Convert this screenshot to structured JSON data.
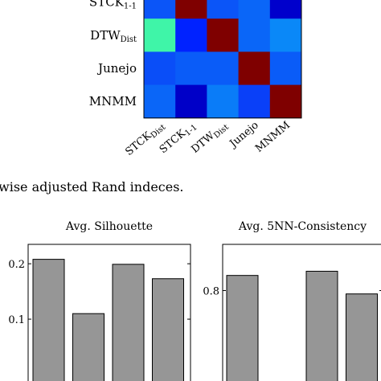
{
  "caption_fragment": "wise adjusted Rand indeces.",
  "chart_data": [
    {
      "type": "heatmap",
      "rows": [
        {
          "main": "STCK",
          "sub": "1-1"
        },
        {
          "main": "DTW",
          "sub": "Dist"
        },
        {
          "main": "Junejo",
          "sub": ""
        },
        {
          "main": "MNMM",
          "sub": ""
        }
      ],
      "columns": [
        {
          "main": "STCK",
          "sub": "Dist"
        },
        {
          "main": "STCK",
          "sub": "1-1"
        },
        {
          "main": "DTW",
          "sub": "Dist"
        },
        {
          "main": "Junejo",
          "sub": ""
        },
        {
          "main": "MNMM",
          "sub": ""
        }
      ],
      "cells": [
        [
          "#0b55f8",
          "#7f0000",
          "#0b55f8",
          "#0a66f8",
          "#0000cc"
        ],
        [
          "#3ff5a8",
          "#0022ff",
          "#7f0000",
          "#0a66f8",
          "#0a88f8"
        ],
        [
          "#0a4ef8",
          "#0a5cf8",
          "#0a5cf8",
          "#7f0000",
          "#0a5cf8"
        ],
        [
          "#0a66f8",
          "#0000c8",
          "#0a7cf8",
          "#0a40f8",
          "#7f0000"
        ]
      ],
      "colormap": "jet"
    },
    {
      "type": "bar",
      "title": "Avg. Silhouette",
      "values": [
        0.208,
        0.11,
        0.199,
        0.173
      ],
      "yticks": [
        0.1,
        0.2
      ],
      "ylim": [
        0.0,
        0.235
      ],
      "bar_color": "#969696"
    },
    {
      "type": "bar",
      "title": "Avg. 5NN-Consistency",
      "values": [
        0.836,
        null,
        0.846,
        0.792
      ],
      "yticks": [
        0.8
      ],
      "ylim": [
        0.6,
        0.91
      ],
      "bar_color": "#969696"
    }
  ]
}
